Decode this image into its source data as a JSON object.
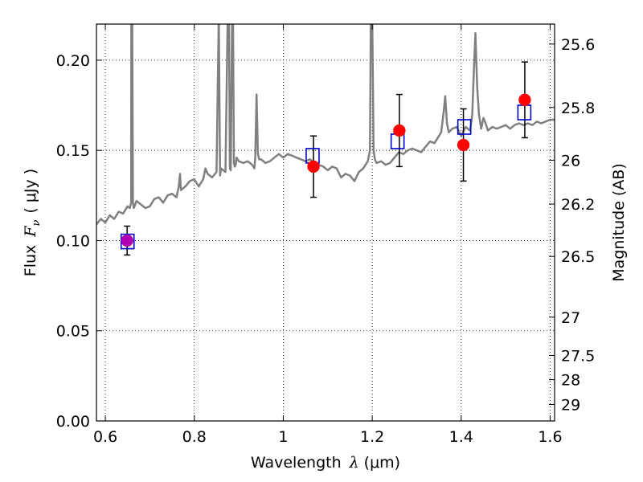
{
  "chart_data": {
    "type": "scatter",
    "xlabel_text": "Wavelength",
    "xlabel_symbol": "λ",
    "xlabel_unit": "(μm)",
    "ylabel_text": "Flux",
    "ylabel_symbol": "F",
    "ylabel_subscript": "ν",
    "ylabel_unit": "( μJy )",
    "y2label": "Magnitude (AB)",
    "xlim": [
      0.58,
      1.61
    ],
    "ylim": [
      0.0,
      0.22
    ],
    "x_ticks": [
      0.6,
      0.8,
      1.0,
      1.2,
      1.4,
      1.6
    ],
    "x_tick_labels": [
      "0.6",
      "0.8",
      "1",
      "1.2",
      "1.4",
      "1.6"
    ],
    "y_ticks": [
      0.0,
      0.05,
      0.1,
      0.15,
      0.2
    ],
    "y_tick_labels": [
      "0.00",
      "0.05",
      "0.10",
      "0.15",
      "0.20"
    ],
    "y2_ticks": [
      25.6,
      25.8,
      26,
      26.2,
      26.5,
      27,
      27.5,
      28,
      29
    ],
    "y2_tick_labels": [
      "25.6",
      "25.8",
      "26",
      "26.2",
      "26.5",
      "27",
      "27.5",
      "28",
      "29"
    ],
    "grid": true,
    "spectrum": {
      "color": "#808080",
      "x": [
        0.58,
        0.59,
        0.6,
        0.61,
        0.62,
        0.63,
        0.64,
        0.65,
        0.655,
        0.658,
        0.6585,
        0.6595,
        0.6605,
        0.662,
        0.664,
        0.67,
        0.68,
        0.69,
        0.7,
        0.71,
        0.72,
        0.73,
        0.74,
        0.75,
        0.76,
        0.765,
        0.768,
        0.77,
        0.775,
        0.78,
        0.79,
        0.8,
        0.81,
        0.82,
        0.825,
        0.83,
        0.84,
        0.85,
        0.855,
        0.858,
        0.86,
        0.865,
        0.87,
        0.875,
        0.878,
        0.88,
        0.882,
        0.885,
        0.887,
        0.889,
        0.891,
        0.893,
        0.895,
        0.9,
        0.91,
        0.92,
        0.93,
        0.935,
        0.937,
        0.94,
        0.943,
        0.946,
        0.95,
        0.96,
        0.97,
        0.98,
        0.99,
        1.0,
        1.01,
        1.02,
        1.03,
        1.04,
        1.05,
        1.06,
        1.07,
        1.08,
        1.09,
        1.1,
        1.11,
        1.12,
        1.13,
        1.14,
        1.15,
        1.16,
        1.17,
        1.18,
        1.19,
        1.195,
        1.197,
        1.198,
        1.2,
        1.203,
        1.206,
        1.21,
        1.22,
        1.23,
        1.24,
        1.25,
        1.26,
        1.27,
        1.28,
        1.29,
        1.3,
        1.31,
        1.32,
        1.33,
        1.34,
        1.35,
        1.355,
        1.36,
        1.364,
        1.368,
        1.372,
        1.38,
        1.39,
        1.4,
        1.41,
        1.42,
        1.425,
        1.428,
        1.432,
        1.436,
        1.44,
        1.445,
        1.45,
        1.455,
        1.46,
        1.47,
        1.48,
        1.49,
        1.5,
        1.51,
        1.52,
        1.53,
        1.54,
        1.55,
        1.56,
        1.57,
        1.58,
        1.59,
        1.6,
        1.61
      ],
      "y": [
        0.109,
        0.112,
        0.11,
        0.114,
        0.112,
        0.116,
        0.115,
        0.119,
        0.118,
        0.121,
        0.225,
        0.225,
        0.225,
        0.121,
        0.118,
        0.122,
        0.12,
        0.118,
        0.119,
        0.123,
        0.124,
        0.121,
        0.125,
        0.126,
        0.124,
        0.13,
        0.137,
        0.128,
        0.129,
        0.13,
        0.133,
        0.134,
        0.13,
        0.134,
        0.14,
        0.137,
        0.135,
        0.138,
        0.225,
        0.136,
        0.14,
        0.139,
        0.138,
        0.225,
        0.225,
        0.14,
        0.139,
        0.225,
        0.225,
        0.143,
        0.141,
        0.142,
        0.146,
        0.144,
        0.143,
        0.144,
        0.142,
        0.14,
        0.146,
        0.181,
        0.148,
        0.145,
        0.145,
        0.143,
        0.144,
        0.146,
        0.148,
        0.146,
        0.148,
        0.147,
        0.146,
        0.145,
        0.144,
        0.145,
        0.143,
        0.142,
        0.141,
        0.139,
        0.141,
        0.14,
        0.135,
        0.137,
        0.136,
        0.133,
        0.138,
        0.14,
        0.144,
        0.15,
        0.225,
        0.225,
        0.225,
        0.15,
        0.145,
        0.143,
        0.144,
        0.142,
        0.143,
        0.146,
        0.149,
        0.148,
        0.15,
        0.151,
        0.15,
        0.149,
        0.152,
        0.155,
        0.154,
        0.158,
        0.16,
        0.17,
        0.18,
        0.165,
        0.16,
        0.162,
        0.163,
        0.158,
        0.163,
        0.161,
        0.17,
        0.191,
        0.215,
        0.185,
        0.17,
        0.162,
        0.168,
        0.165,
        0.161,
        0.163,
        0.162,
        0.163,
        0.164,
        0.162,
        0.164,
        0.165,
        0.164,
        0.165,
        0.164,
        0.166,
        0.165,
        0.166,
        0.167,
        0.167
      ]
    },
    "photometry": {
      "x": [
        0.649,
        1.068,
        1.261,
        1.405,
        1.543
      ],
      "y": [
        0.1,
        0.141,
        0.161,
        0.153,
        0.178
      ],
      "yerr": [
        0.008,
        0.017,
        0.02,
        0.02,
        0.021
      ],
      "color": "#ff0000"
    },
    "model_points": {
      "x": [
        0.65,
        1.066,
        1.257,
        1.407,
        1.542
      ],
      "y": [
        0.0995,
        0.147,
        0.155,
        0.163,
        0.171
      ],
      "color": "#0000cc"
    }
  }
}
